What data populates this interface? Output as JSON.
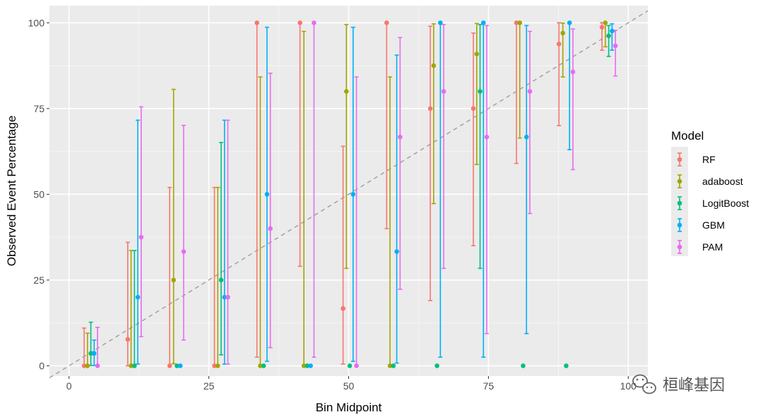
{
  "chart_data": {
    "type": "scatter",
    "title": "",
    "xlabel": "Bin Midpoint",
    "ylabel": "Observed Event Percentage",
    "xlim": [
      -3.5,
      103.5
    ],
    "ylim": [
      -3,
      105
    ],
    "xticks": [
      0,
      25,
      50,
      75,
      100
    ],
    "yticks": [
      0,
      25,
      50,
      75,
      100
    ],
    "xtick_labels": [
      "0",
      "25",
      "50",
      "75",
      "100"
    ],
    "ytick_labels": [
      "0",
      "25",
      "50",
      "75",
      "100"
    ],
    "grid": true,
    "reference_line": {
      "style": "dashed",
      "color": "#a6a6a6",
      "from": [
        -3.5,
        -3.5
      ],
      "to": [
        103.5,
        103.5
      ]
    },
    "legend": {
      "title": "Model",
      "position": "right"
    },
    "series": [
      {
        "name": "RF",
        "color": "#F8766D",
        "points": [
          {
            "x": 2.7,
            "y": 0,
            "lo": 0,
            "hi": 11
          },
          {
            "x": 10.5,
            "y": 7.7,
            "lo": 0,
            "hi": 36
          },
          {
            "x": 18,
            "y": 0,
            "lo": 0,
            "hi": 52
          },
          {
            "x": 26,
            "y": 0,
            "lo": 0,
            "hi": 52
          },
          {
            "x": 33.6,
            "y": 100,
            "lo": 2.5,
            "hi": 100
          },
          {
            "x": 41.3,
            "y": 100,
            "lo": 29,
            "hi": 100
          },
          {
            "x": 49,
            "y": 16.7,
            "lo": 0.5,
            "hi": 64
          },
          {
            "x": 56.8,
            "y": 100,
            "lo": 40,
            "hi": 100
          },
          {
            "x": 64.6,
            "y": 75,
            "lo": 19,
            "hi": 99
          },
          {
            "x": 72.3,
            "y": 75,
            "lo": 35,
            "hi": 97
          },
          {
            "x": 80,
            "y": 100,
            "lo": 59,
            "hi": 100
          },
          {
            "x": 87.6,
            "y": 93.8,
            "lo": 70,
            "hi": 100
          },
          {
            "x": 95.3,
            "y": 98.7,
            "lo": 92,
            "hi": 100
          }
        ]
      },
      {
        "name": "adaboost",
        "color": "#A3A500",
        "points": [
          {
            "x": 3.3,
            "y": 0,
            "lo": 0,
            "hi": 9.5
          },
          {
            "x": 11.1,
            "y": 0,
            "lo": 0,
            "hi": 33.6
          },
          {
            "x": 18.7,
            "y": 25,
            "lo": 0.6,
            "hi": 80.6
          },
          {
            "x": 26.6,
            "y": 0,
            "lo": 0,
            "hi": 52
          },
          {
            "x": 34.2,
            "y": 0,
            "lo": 0,
            "hi": 84.2
          },
          {
            "x": 42,
            "y": 0,
            "lo": 0,
            "hi": 97.5
          },
          {
            "x": 49.6,
            "y": 80,
            "lo": 28.4,
            "hi": 99.5
          },
          {
            "x": 57.4,
            "y": 0,
            "lo": 0,
            "hi": 84.2
          },
          {
            "x": 65.2,
            "y": 87.5,
            "lo": 47.3,
            "hi": 99.7
          },
          {
            "x": 72.9,
            "y": 90.9,
            "lo": 58.7,
            "hi": 99.8
          },
          {
            "x": 80.6,
            "y": 100,
            "lo": 66.4,
            "hi": 100
          },
          {
            "x": 88.3,
            "y": 97,
            "lo": 84.2,
            "hi": 99.9
          },
          {
            "x": 95.9,
            "y": 100,
            "lo": 93,
            "hi": 100
          }
        ]
      },
      {
        "name": "LogitBoost",
        "color": "#00BF7D",
        "points": [
          {
            "x": 3.9,
            "y": 3.6,
            "lo": 0.1,
            "hi": 12.7
          },
          {
            "x": 11.7,
            "y": 0,
            "lo": 0,
            "hi": 33.6
          },
          {
            "x": 19.3,
            "y": 0,
            "lo": 0,
            "hi": 0
          },
          {
            "x": 27.2,
            "y": 25,
            "lo": 3.2,
            "hi": 65.1
          },
          {
            "x": 34.8,
            "y": 0,
            "lo": 0,
            "hi": 0
          },
          {
            "x": 42.6,
            "y": 0,
            "lo": 0,
            "hi": 0
          },
          {
            "x": 50.2,
            "y": 0,
            "lo": 0,
            "hi": 0
          },
          {
            "x": 58,
            "y": 0,
            "lo": 0,
            "hi": 0
          },
          {
            "x": 65.8,
            "y": 0,
            "lo": 0,
            "hi": 0
          },
          {
            "x": 73.5,
            "y": 80,
            "lo": 28.4,
            "hi": 99.5
          },
          {
            "x": 81.2,
            "y": 0,
            "lo": 0,
            "hi": 0
          },
          {
            "x": 88.9,
            "y": 0,
            "lo": 0,
            "hi": 0
          },
          {
            "x": 96.5,
            "y": 96.2,
            "lo": 90.2,
            "hi": 99.2
          }
        ]
      },
      {
        "name": "GBM",
        "color": "#00B0F6",
        "points": [
          {
            "x": 4.5,
            "y": 3.6,
            "lo": 0.1,
            "hi": 7.5
          },
          {
            "x": 12.3,
            "y": 20,
            "lo": 0.5,
            "hi": 71.6
          },
          {
            "x": 19.9,
            "y": 0,
            "lo": 0,
            "hi": 0
          },
          {
            "x": 27.8,
            "y": 20,
            "lo": 0.5,
            "hi": 71.6
          },
          {
            "x": 35.4,
            "y": 50,
            "lo": 1.3,
            "hi": 98.7
          },
          {
            "x": 43.2,
            "y": 0,
            "lo": 0,
            "hi": 0
          },
          {
            "x": 50.8,
            "y": 50,
            "lo": 1.3,
            "hi": 98.7
          },
          {
            "x": 58.6,
            "y": 33.3,
            "lo": 0.8,
            "hi": 90.6
          },
          {
            "x": 66.4,
            "y": 100,
            "lo": 2.5,
            "hi": 100
          },
          {
            "x": 74.1,
            "y": 100,
            "lo": 2.5,
            "hi": 100
          },
          {
            "x": 81.8,
            "y": 66.7,
            "lo": 9.4,
            "hi": 99.2
          },
          {
            "x": 89.5,
            "y": 100,
            "lo": 63,
            "hi": 100
          },
          {
            "x": 97.1,
            "y": 97.6,
            "lo": 92,
            "hi": 99.7
          }
        ]
      },
      {
        "name": "PAM",
        "color": "#E76BF3",
        "points": [
          {
            "x": 5.1,
            "y": 0,
            "lo": 0,
            "hi": 11.2
          },
          {
            "x": 12.9,
            "y": 37.5,
            "lo": 8.5,
            "hi": 75.5
          },
          {
            "x": 20.5,
            "y": 33.3,
            "lo": 7.5,
            "hi": 70.1
          },
          {
            "x": 28.4,
            "y": 20,
            "lo": 0.5,
            "hi": 71.6
          },
          {
            "x": 36,
            "y": 40,
            "lo": 5.3,
            "hi": 85.3
          },
          {
            "x": 43.8,
            "y": 100,
            "lo": 2.5,
            "hi": 100
          },
          {
            "x": 51.4,
            "y": 0,
            "lo": 0,
            "hi": 84.2
          },
          {
            "x": 59.2,
            "y": 66.7,
            "lo": 22.3,
            "hi": 95.7
          },
          {
            "x": 67,
            "y": 80,
            "lo": 28.4,
            "hi": 99.5
          },
          {
            "x": 74.7,
            "y": 66.7,
            "lo": 9.4,
            "hi": 99.2
          },
          {
            "x": 82.4,
            "y": 80,
            "lo": 44.4,
            "hi": 97.5
          },
          {
            "x": 90.1,
            "y": 85.7,
            "lo": 57.2,
            "hi": 98.2
          },
          {
            "x": 97.7,
            "y": 93.3,
            "lo": 84.5,
            "hi": 97.8
          }
        ]
      }
    ]
  },
  "watermark": {
    "text": "桓峰基因",
    "icon": "wechat-icon"
  }
}
